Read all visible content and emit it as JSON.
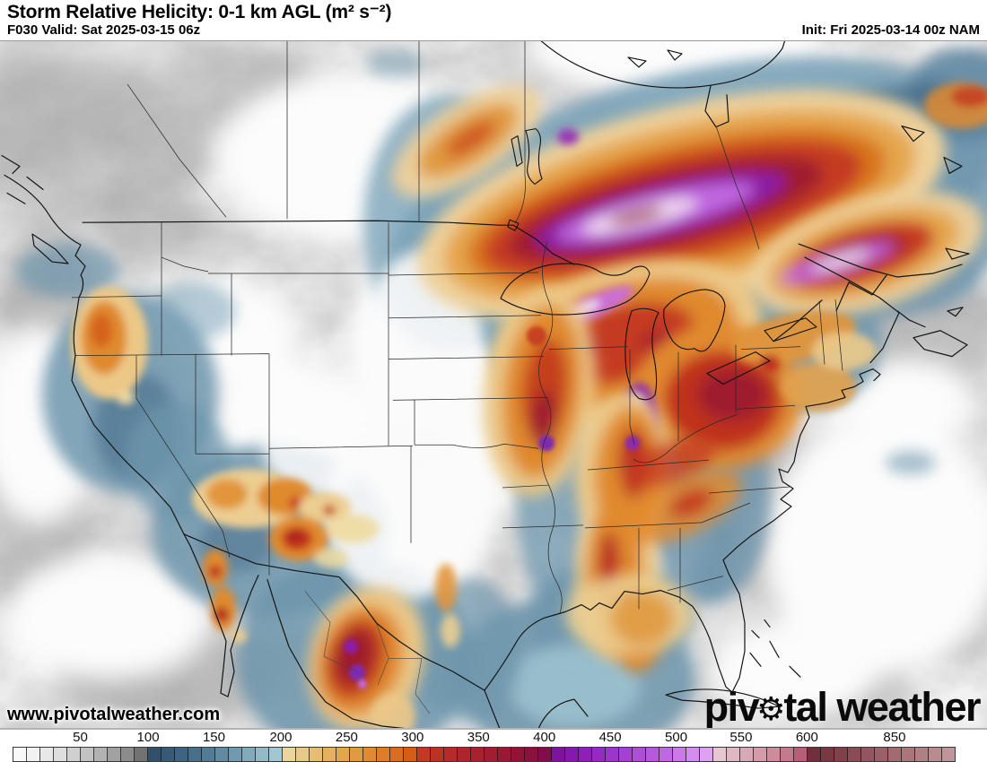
{
  "header": {
    "title": "Storm Relative Helicity: 0-1 km AGL (m² s⁻²)",
    "forecast": "F030 Valid: Sat 2025-03-15 06z",
    "init": "Init: Fri 2025-03-14 00z NAM"
  },
  "watermark": "www.pivotalweather.com",
  "logo": {
    "prefix": "piv",
    "gear_icon": "⚙",
    "suffix": "tal weather"
  },
  "map": {
    "kind": "filled-contour helicity field over North America",
    "key_colors": {
      "low_gray": "#bfbfbf",
      "blue": "#4f7a96",
      "light_blue": "#a7ccd6",
      "tan": "#ecd9a4",
      "orange": "#e1943c",
      "red": "#b62c27",
      "dark_red": "#9e1b2e",
      "purple": "#8c19b2",
      "violet": "#c168e0",
      "pale_pink": "#ebd3da",
      "rose": "#b14f6b",
      "maroon": "#6e2d39"
    }
  },
  "colorbar": {
    "segments": 70,
    "ticks": [
      {
        "label": "50",
        "f": 0.072
      },
      {
        "label": "100",
        "f": 0.144
      },
      {
        "label": "150",
        "f": 0.214
      },
      {
        "label": "200",
        "f": 0.285
      },
      {
        "label": "250",
        "f": 0.355
      },
      {
        "label": "300",
        "f": 0.425
      },
      {
        "label": "350",
        "f": 0.495
      },
      {
        "label": "400",
        "f": 0.565
      },
      {
        "label": "450",
        "f": 0.635
      },
      {
        "label": "500",
        "f": 0.705
      },
      {
        "label": "550",
        "f": 0.774
      },
      {
        "label": "600",
        "f": 0.844
      },
      {
        "label": "850",
        "f": 0.937
      }
    ],
    "stops": [
      {
        "f": 0.0,
        "c": "#fdfdfd"
      },
      {
        "f": 0.025,
        "c": "#f0f0f0"
      },
      {
        "f": 0.05,
        "c": "#dedede"
      },
      {
        "f": 0.072,
        "c": "#c9c9c9"
      },
      {
        "f": 0.095,
        "c": "#b0b0b0"
      },
      {
        "f": 0.115,
        "c": "#979797"
      },
      {
        "f": 0.13,
        "c": "#7e7e7e"
      },
      {
        "f": 0.144,
        "c": "#616161"
      },
      {
        "f": 0.146,
        "c": "#2e4d68"
      },
      {
        "f": 0.175,
        "c": "#3a617f"
      },
      {
        "f": 0.205,
        "c": "#4f7a96"
      },
      {
        "f": 0.235,
        "c": "#6f99ae"
      },
      {
        "f": 0.26,
        "c": "#8db6c4"
      },
      {
        "f": 0.284,
        "c": "#a7ccd6"
      },
      {
        "f": 0.287,
        "c": "#ecd9a4"
      },
      {
        "f": 0.31,
        "c": "#e9c87f"
      },
      {
        "f": 0.34,
        "c": "#e5ad58"
      },
      {
        "f": 0.37,
        "c": "#e1943c"
      },
      {
        "f": 0.4,
        "c": "#da7626"
      },
      {
        "f": 0.424,
        "c": "#d25a18"
      },
      {
        "f": 0.427,
        "c": "#c53e1e"
      },
      {
        "f": 0.46,
        "c": "#b62c27"
      },
      {
        "f": 0.5,
        "c": "#a5202f"
      },
      {
        "f": 0.54,
        "c": "#8f1338"
      },
      {
        "f": 0.564,
        "c": "#7f0e44"
      },
      {
        "f": 0.567,
        "c": "#7a0f92"
      },
      {
        "f": 0.6,
        "c": "#8c19b2"
      },
      {
        "f": 0.63,
        "c": "#9c2fc6"
      },
      {
        "f": 0.66,
        "c": "#ad49d6"
      },
      {
        "f": 0.69,
        "c": "#bf63e2"
      },
      {
        "f": 0.715,
        "c": "#d083ec"
      },
      {
        "f": 0.737,
        "c": "#dfa3f2"
      },
      {
        "f": 0.741,
        "c": "#ebd3da"
      },
      {
        "f": 0.77,
        "c": "#ddb0bc"
      },
      {
        "f": 0.8,
        "c": "#d194a4"
      },
      {
        "f": 0.825,
        "c": "#c47389"
      },
      {
        "f": 0.843,
        "c": "#b14f6b"
      },
      {
        "f": 0.846,
        "c": "#6e2d39"
      },
      {
        "f": 0.88,
        "c": "#84414b"
      },
      {
        "f": 0.91,
        "c": "#955761"
      },
      {
        "f": 0.94,
        "c": "#a56d74"
      },
      {
        "f": 0.97,
        "c": "#b48589"
      },
      {
        "f": 1.0,
        "c": "#c39a9e"
      }
    ]
  }
}
